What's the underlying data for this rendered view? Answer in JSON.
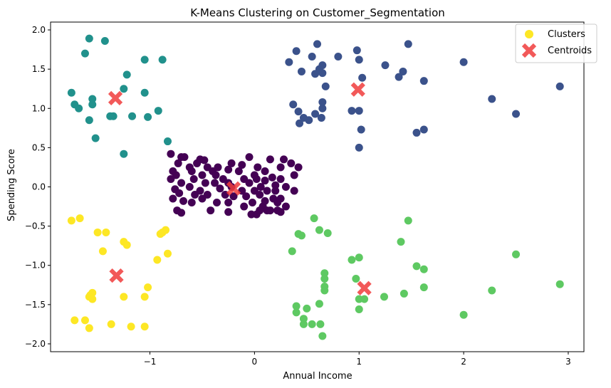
{
  "chart_data": {
    "type": "scatter",
    "title": "K-Means Clustering on Customer_Segmentation",
    "xlabel": "Annual Income",
    "ylabel": "Spending Score",
    "xlim": [
      -1.95,
      3.15
    ],
    "ylim": [
      -2.1,
      2.1
    ],
    "xticks": [
      -1,
      0,
      1,
      2,
      3
    ],
    "xtick_labels": [
      "−1",
      "0",
      "1",
      "2",
      "3"
    ],
    "yticks": [
      -2.0,
      -1.5,
      -1.0,
      -0.5,
      0.0,
      0.5,
      1.0,
      1.5,
      2.0
    ],
    "ytick_labels": [
      "−2.0",
      "−1.5",
      "−1.0",
      "−0.5",
      "0.0",
      "0.5",
      "1.0",
      "1.5",
      "2.0"
    ],
    "grid": false,
    "legend": {
      "placement": "top-right",
      "entries": [
        {
          "label": "Clusters",
          "marker": "circle",
          "color": "#fde725"
        },
        {
          "label": "Centroids",
          "marker": "x",
          "color": "#f03c3c"
        }
      ]
    },
    "colors": {
      "cluster_0": "#440154",
      "cluster_1": "#3b528b",
      "cluster_2": "#21918c",
      "cluster_3": "#5ec962",
      "cluster_4": "#fde725",
      "centroid": "#f03c3c"
    },
    "clusters": [
      {
        "cluster": 0,
        "points": [
          [
            -0.8,
            0.42
          ],
          [
            -0.7,
            0.38
          ],
          [
            -0.67,
            0.38
          ],
          [
            -0.73,
            0.3
          ],
          [
            -0.78,
            0.2
          ],
          [
            -0.75,
            0.15
          ],
          [
            -0.8,
            0.1
          ],
          [
            -0.7,
            0.05
          ],
          [
            -0.76,
            -0.03
          ],
          [
            -0.72,
            -0.08
          ],
          [
            -0.78,
            -0.15
          ],
          [
            -0.68,
            -0.18
          ],
          [
            -0.74,
            -0.3
          ],
          [
            -0.7,
            -0.33
          ],
          [
            -0.62,
            0.25
          ],
          [
            -0.6,
            0.2
          ],
          [
            -0.58,
            0.1
          ],
          [
            -0.62,
            0.0
          ],
          [
            -0.57,
            -0.1
          ],
          [
            -0.6,
            -0.2
          ],
          [
            -0.55,
            0.3
          ],
          [
            -0.52,
            0.35
          ],
          [
            -0.48,
            0.34
          ],
          [
            -0.45,
            0.25
          ],
          [
            -0.5,
            0.15
          ],
          [
            -0.47,
            0.05
          ],
          [
            -0.52,
            -0.05
          ],
          [
            -0.45,
            -0.1
          ],
          [
            -0.5,
            -0.15
          ],
          [
            -0.42,
            -0.3
          ],
          [
            -0.4,
            0.2
          ],
          [
            -0.37,
            0.15
          ],
          [
            -0.35,
            0.25
          ],
          [
            -0.38,
            0.05
          ],
          [
            -0.33,
            -0.02
          ],
          [
            -0.36,
            -0.2
          ],
          [
            -0.3,
            0.1
          ],
          [
            -0.28,
            -0.1
          ],
          [
            -0.25,
            0.22
          ],
          [
            -0.22,
            0.3
          ],
          [
            -0.25,
            0.05
          ],
          [
            -0.2,
            -0.12
          ],
          [
            -0.25,
            -0.2
          ],
          [
            -0.25,
            -0.32
          ],
          [
            -0.22,
            0.0
          ],
          [
            -0.15,
            0.2
          ],
          [
            -0.12,
            0.28
          ],
          [
            -0.1,
            0.1
          ],
          [
            -0.12,
            -0.05
          ],
          [
            -0.08,
            -0.12
          ],
          [
            -0.1,
            -0.25
          ],
          [
            -0.05,
            0.38
          ],
          [
            -0.05,
            0.05
          ],
          [
            -0.02,
            -0.2
          ],
          [
            -0.03,
            -0.35
          ],
          [
            0.0,
            0.15
          ],
          [
            0.02,
            0.1
          ],
          [
            0.03,
            0.25
          ],
          [
            0.0,
            -0.05
          ],
          [
            0.05,
            -0.1
          ],
          [
            0.02,
            -0.35
          ],
          [
            0.06,
            0.0
          ],
          [
            0.05,
            -0.3
          ],
          [
            0.08,
            -0.25
          ],
          [
            0.1,
            0.2
          ],
          [
            0.1,
            0.08
          ],
          [
            0.12,
            -0.05
          ],
          [
            0.1,
            -0.18
          ],
          [
            0.12,
            -0.3
          ],
          [
            0.15,
            0.35
          ],
          [
            0.15,
            -0.3
          ],
          [
            0.17,
            0.12
          ],
          [
            0.18,
            -0.15
          ],
          [
            0.2,
            0.02
          ],
          [
            0.2,
            -0.05
          ],
          [
            0.22,
            -0.2
          ],
          [
            0.25,
            0.25
          ],
          [
            0.25,
            0.1
          ],
          [
            0.25,
            -0.32
          ],
          [
            0.28,
            0.35
          ],
          [
            0.3,
            -0.25
          ],
          [
            0.3,
            0.0
          ],
          [
            0.35,
            0.3
          ],
          [
            0.38,
            0.15
          ],
          [
            0.38,
            -0.05
          ],
          [
            0.42,
            0.25
          ],
          [
            0.25,
            -0.15
          ],
          [
            0.22,
            -0.3
          ]
        ]
      },
      {
        "cluster": 1,
        "points": [
          [
            0.6,
            1.82
          ],
          [
            0.8,
            1.66
          ],
          [
            0.98,
            1.74
          ],
          [
            1.0,
            1.62
          ],
          [
            0.55,
            1.66
          ],
          [
            0.58,
            1.44
          ],
          [
            0.62,
            1.5
          ],
          [
            0.65,
            1.55
          ],
          [
            0.65,
            1.45
          ],
          [
            0.45,
            1.47
          ],
          [
            0.4,
            1.73
          ],
          [
            0.33,
            1.59
          ],
          [
            1.03,
            1.39
          ],
          [
            1.25,
            1.55
          ],
          [
            1.38,
            1.4
          ],
          [
            1.42,
            1.47
          ],
          [
            1.47,
            1.82
          ],
          [
            1.62,
            1.35
          ],
          [
            2.0,
            1.59
          ],
          [
            0.68,
            1.28
          ],
          [
            0.37,
            1.05
          ],
          [
            0.42,
            0.96
          ],
          [
            0.47,
            0.88
          ],
          [
            0.52,
            0.85
          ],
          [
            0.43,
            0.81
          ],
          [
            0.58,
            0.93
          ],
          [
            0.64,
            0.88
          ],
          [
            0.65,
            1.0
          ],
          [
            0.65,
            1.08
          ],
          [
            0.93,
            0.97
          ],
          [
            1.0,
            0.97
          ],
          [
            1.02,
            0.73
          ],
          [
            1.0,
            0.5
          ],
          [
            1.55,
            0.69
          ],
          [
            1.62,
            0.73
          ],
          [
            2.27,
            1.12
          ],
          [
            2.5,
            0.93
          ],
          [
            2.92,
            1.28
          ]
        ]
      },
      {
        "cluster": 2,
        "points": [
          [
            -1.58,
            1.89
          ],
          [
            -1.43,
            1.86
          ],
          [
            -1.62,
            1.7
          ],
          [
            -1.05,
            1.62
          ],
          [
            -0.88,
            1.62
          ],
          [
            -1.25,
            1.25
          ],
          [
            -1.22,
            1.43
          ],
          [
            -1.75,
            1.2
          ],
          [
            -1.72,
            1.05
          ],
          [
            -1.68,
            1.0
          ],
          [
            -1.55,
            1.12
          ],
          [
            -1.55,
            1.05
          ],
          [
            -1.38,
            0.9
          ],
          [
            -1.35,
            0.9
          ],
          [
            -1.58,
            0.85
          ],
          [
            -1.17,
            0.9
          ],
          [
            -1.05,
            1.2
          ],
          [
            -1.02,
            0.89
          ],
          [
            -0.92,
            0.97
          ],
          [
            -1.52,
            0.62
          ],
          [
            -1.25,
            0.42
          ],
          [
            -0.83,
            0.58
          ]
        ]
      },
      {
        "cluster": 3,
        "points": [
          [
            0.57,
            -0.4
          ],
          [
            0.62,
            -0.55
          ],
          [
            0.7,
            -0.59
          ],
          [
            0.36,
            -0.82
          ],
          [
            0.4,
            -1.52
          ],
          [
            0.4,
            -1.6
          ],
          [
            0.5,
            -1.55
          ],
          [
            0.47,
            -1.68
          ],
          [
            0.47,
            -1.75
          ],
          [
            0.55,
            -1.75
          ],
          [
            0.62,
            -1.49
          ],
          [
            0.63,
            -1.75
          ],
          [
            0.65,
            -1.9
          ],
          [
            0.67,
            -1.1
          ],
          [
            0.67,
            -1.17
          ],
          [
            0.67,
            -1.27
          ],
          [
            0.67,
            -1.32
          ],
          [
            0.93,
            -0.93
          ],
          [
            0.97,
            -1.17
          ],
          [
            1.0,
            -0.9
          ],
          [
            1.0,
            -1.43
          ],
          [
            1.0,
            -1.56
          ],
          [
            1.05,
            -1.43
          ],
          [
            1.24,
            -1.4
          ],
          [
            1.4,
            -0.7
          ],
          [
            1.43,
            -1.36
          ],
          [
            1.47,
            -0.43
          ],
          [
            1.55,
            -1.01
          ],
          [
            1.62,
            -1.05
          ],
          [
            1.62,
            -1.28
          ],
          [
            2.0,
            -1.63
          ],
          [
            2.27,
            -1.32
          ],
          [
            2.5,
            -0.86
          ],
          [
            2.92,
            -1.24
          ],
          [
            0.42,
            -0.6
          ],
          [
            0.45,
            -0.62
          ]
        ]
      },
      {
        "cluster": 4,
        "points": [
          [
            -1.75,
            -0.43
          ],
          [
            -1.67,
            -0.4
          ],
          [
            -1.5,
            -0.58
          ],
          [
            -1.42,
            -0.58
          ],
          [
            -1.45,
            -0.82
          ],
          [
            -1.25,
            -0.7
          ],
          [
            -1.22,
            -0.74
          ],
          [
            -0.88,
            -0.58
          ],
          [
            -0.85,
            -0.55
          ],
          [
            -0.9,
            -0.6
          ],
          [
            -0.93,
            -0.93
          ],
          [
            -0.83,
            -0.85
          ],
          [
            -1.55,
            -1.35
          ],
          [
            -1.57,
            -1.38
          ],
          [
            -1.58,
            -1.4
          ],
          [
            -1.55,
            -1.43
          ],
          [
            -1.25,
            -1.4
          ],
          [
            -1.05,
            -1.4
          ],
          [
            -1.02,
            -1.28
          ],
          [
            -1.72,
            -1.7
          ],
          [
            -1.62,
            -1.7
          ],
          [
            -1.58,
            -1.8
          ],
          [
            -1.37,
            -1.75
          ],
          [
            -1.18,
            -1.78
          ],
          [
            -1.05,
            -1.78
          ]
        ]
      }
    ],
    "centroids": [
      [
        -0.2,
        -0.02
      ],
      [
        0.99,
        1.24
      ],
      [
        -1.33,
        1.13
      ],
      [
        1.05,
        -1.29
      ],
      [
        -1.32,
        -1.13
      ]
    ]
  }
}
